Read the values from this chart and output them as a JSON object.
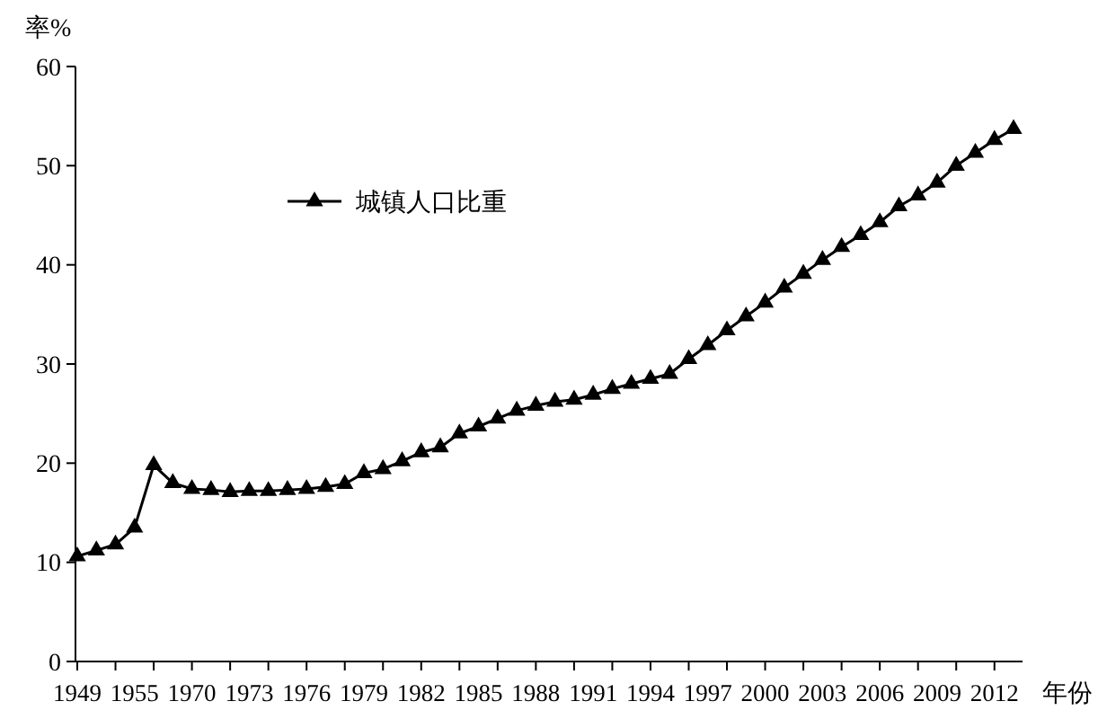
{
  "chart_data": {
    "type": "line",
    "ylabel": "率%",
    "xlabel": "年份",
    "categories": [
      "1949",
      null,
      null,
      "1955",
      null,
      null,
      "1970",
      null,
      null,
      "1973",
      null,
      null,
      "1976",
      null,
      null,
      "1979",
      null,
      null,
      "1982",
      null,
      null,
      "1985",
      null,
      null,
      "1988",
      null,
      null,
      "1991",
      null,
      null,
      "1994",
      null,
      null,
      "1997",
      null,
      null,
      "2000",
      null,
      null,
      "2003",
      null,
      null,
      "2006",
      null,
      null,
      "2009",
      null,
      null,
      "2012",
      null
    ],
    "series": [
      {
        "name": "城镇人口比重",
        "color": "#000000",
        "values": [
          10.6,
          11.2,
          11.8,
          13.5,
          19.8,
          18.0,
          17.4,
          17.3,
          17.1,
          17.2,
          17.2,
          17.3,
          17.4,
          17.6,
          17.9,
          19.0,
          19.4,
          20.2,
          21.1,
          21.6,
          23.0,
          23.7,
          24.5,
          25.3,
          25.8,
          26.2,
          26.4,
          26.9,
          27.5,
          28.0,
          28.5,
          29.0,
          30.5,
          31.9,
          33.4,
          34.8,
          36.2,
          37.7,
          39.1,
          40.5,
          41.8,
          43.0,
          44.3,
          45.9,
          47.0,
          48.3,
          50.0,
          51.3,
          52.6,
          53.7
        ]
      }
    ],
    "ylim": [
      0,
      60
    ],
    "yticks": [
      0,
      10,
      20,
      30,
      40,
      50,
      60
    ],
    "grid": false,
    "legend": "top left",
    "marker": "triangle",
    "line_style": "solid"
  }
}
